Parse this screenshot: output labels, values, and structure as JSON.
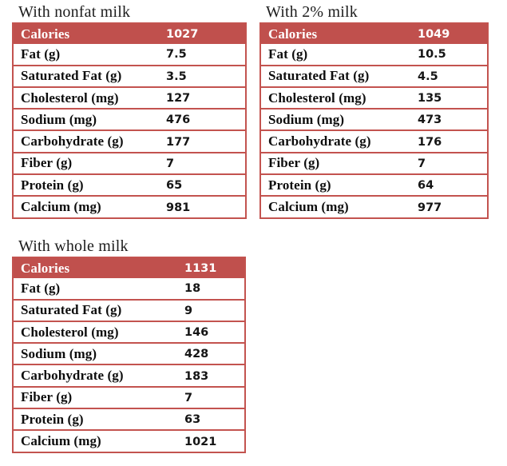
{
  "colors": {
    "accent_red": "#C0504D",
    "border_red": "#C3534F",
    "header_text": "#FFFFFF",
    "body_text": "#0D0D0D",
    "background": "#FFFFFF"
  },
  "tables": [
    {
      "id": "nonfat",
      "title": "With nonfat milk",
      "rows": [
        {
          "label": "Calories",
          "value": "1027",
          "header": true
        },
        {
          "label": "Fat (g)",
          "value": "7.5"
        },
        {
          "label": "Saturated Fat (g)",
          "value": "3.5"
        },
        {
          "label": "Cholesterol (mg)",
          "value": "127"
        },
        {
          "label": "Sodium (mg)",
          "value": "476"
        },
        {
          "label": "Carbohydrate (g)",
          "value": "177"
        },
        {
          "label": "Fiber (g)",
          "value": "7"
        },
        {
          "label": "Protein (g)",
          "value": "65"
        },
        {
          "label": "Calcium (mg)",
          "value": "981"
        }
      ]
    },
    {
      "id": "2pct",
      "title": "With 2% milk",
      "rows": [
        {
          "label": "Calories",
          "value": "1049",
          "header": true
        },
        {
          "label": "Fat (g)",
          "value": "10.5"
        },
        {
          "label": "Saturated Fat (g)",
          "value": "4.5"
        },
        {
          "label": "Cholesterol (mg)",
          "value": "135"
        },
        {
          "label": "Sodium (mg)",
          "value": "473"
        },
        {
          "label": "Carbohydrate (g)",
          "value": "176"
        },
        {
          "label": "Fiber (g)",
          "value": "7"
        },
        {
          "label": "Protein (g)",
          "value": "64"
        },
        {
          "label": "Calcium (mg)",
          "value": "977"
        }
      ]
    },
    {
      "id": "whole",
      "title": "With whole milk",
      "rows": [
        {
          "label": "Calories",
          "value": "1131",
          "header": true
        },
        {
          "label": "Fat (g)",
          "value": "18"
        },
        {
          "label": "Saturated Fat (g)",
          "value": "9"
        },
        {
          "label": "Cholesterol (mg)",
          "value": "146"
        },
        {
          "label": "Sodium (mg)",
          "value": "428"
        },
        {
          "label": "Carbohydrate (g)",
          "value": "183"
        },
        {
          "label": "Fiber (g)",
          "value": "7"
        },
        {
          "label": "Protein (g)",
          "value": "63"
        },
        {
          "label": "Calcium (mg)",
          "value": "1021"
        }
      ]
    }
  ]
}
